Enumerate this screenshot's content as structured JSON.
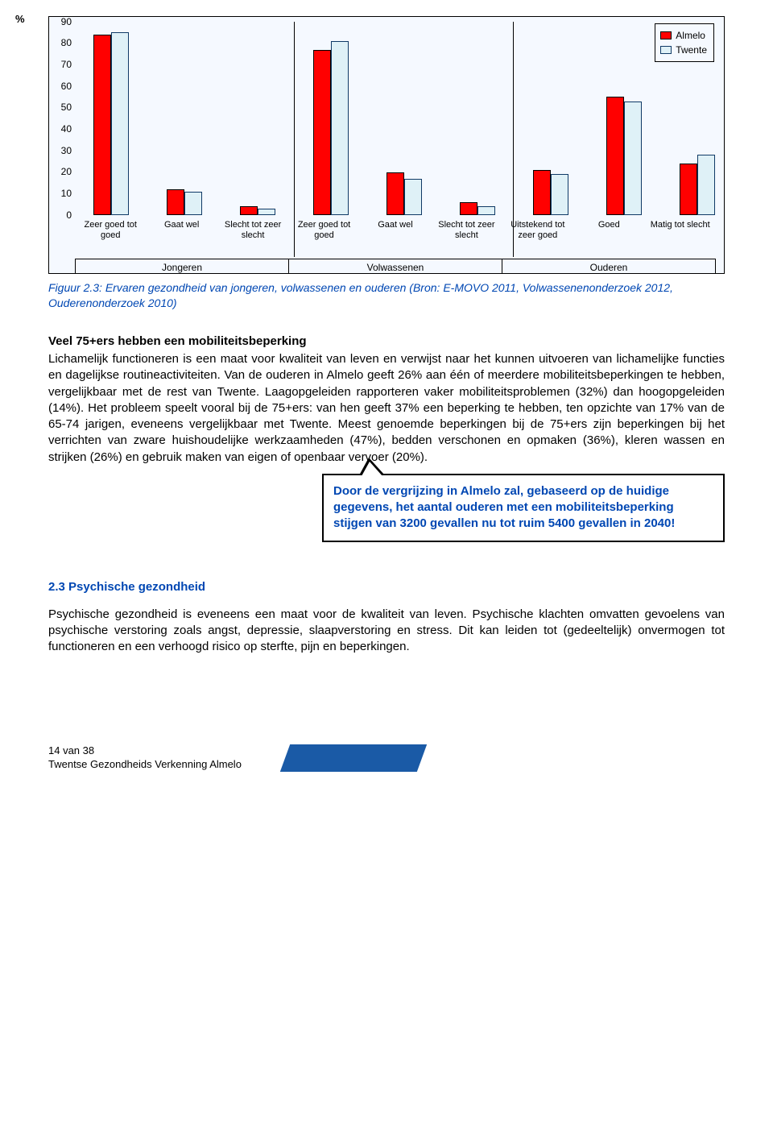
{
  "chart": {
    "type": "grouped-bar",
    "y_label": "%",
    "ylim": [
      0,
      90
    ],
    "ytick_step": 10,
    "yticks": [
      0,
      10,
      20,
      30,
      40,
      50,
      60,
      70,
      80,
      90
    ],
    "background_color": "#f5f9ff",
    "border_color": "#000000",
    "series": [
      {
        "name": "Almelo",
        "color": "#ff0000"
      },
      {
        "name": "Twente",
        "color": "#dff1f7"
      }
    ],
    "groups": [
      {
        "label": "Jongeren",
        "span": 3
      },
      {
        "label": "Volwassenen",
        "span": 3
      },
      {
        "label": "Ouderen",
        "span": 3
      }
    ],
    "categories": [
      "Zeer goed tot goed",
      "Gaat wel",
      "Slecht tot zeer slecht",
      "Zeer goed tot goed",
      "Gaat wel",
      "Slecht tot zeer slecht",
      "Uitstekend tot zeer goed",
      "Goed",
      "Matig tot slecht"
    ],
    "values_almelo": [
      84,
      12,
      4,
      77,
      20,
      6,
      21,
      55,
      24
    ],
    "values_twente": [
      85,
      11,
      3,
      81,
      17,
      4,
      19,
      53,
      28
    ],
    "legend": {
      "items": [
        "Almelo",
        "Twente"
      ]
    },
    "caption": "Figuur 2.3: Ervaren gezondheid van jongeren, volwassenen en ouderen (Bron: E-MOVO 2011, Volwassenenonderzoek 2012, Ouderenonderzoek 2010)"
  },
  "heading1": "Veel 75+ers hebben een mobiliteitsbeperking",
  "paragraph1": "Lichamelijk functioneren is een maat voor kwaliteit van leven en verwijst naar het kunnen uitvoeren van lichamelijke functies en dagelijkse routineactiviteiten. Van de ouderen in Almelo geeft 26% aan één of meerdere mobiliteitsbeperkingen te hebben, vergelijkbaar met de rest van Twente. Laagopgeleiden rapporteren vaker mobiliteitsproblemen (32%) dan hoogopgeleiden (14%). Het probleem speelt vooral bij de 75+ers: van hen geeft 37% een beperking te hebben, ten opzichte van 17% van de 65-74 jarigen, eveneens vergelijkbaar met Twente. Meest genoemde beperkingen bij de 75+ers zijn beperkingen bij het verrichten van zware huishoudelijke werkzaamheden (47%), bedden verschonen en opmaken (36%), kleren wassen en strijken (26%) en gebruik maken van eigen of openbaar vervoer (20%).",
  "callout": "Door de vergrijzing in Almelo zal, gebaseerd op de huidige gegevens, het aantal ouderen met een mobiliteitsbeperking stijgen van 3200 gevallen nu tot ruim 5400 gevallen in 2040!",
  "section23_title": "2.3 Psychische gezondheid",
  "section23_body": "Psychische gezondheid is eveneens een maat voor de kwaliteit van leven. Psychische klachten omvatten gevoelens van psychische verstoring zoals angst, depressie, slaapverstoring en stress. Dit kan leiden tot (gedeeltelijk) onvermogen tot functioneren en een verhoogd risico op sterfte, pijn en beperkingen.",
  "footer": {
    "line1": "14 van 38",
    "line2": "Twentse Gezondheids Verkenning Almelo"
  }
}
